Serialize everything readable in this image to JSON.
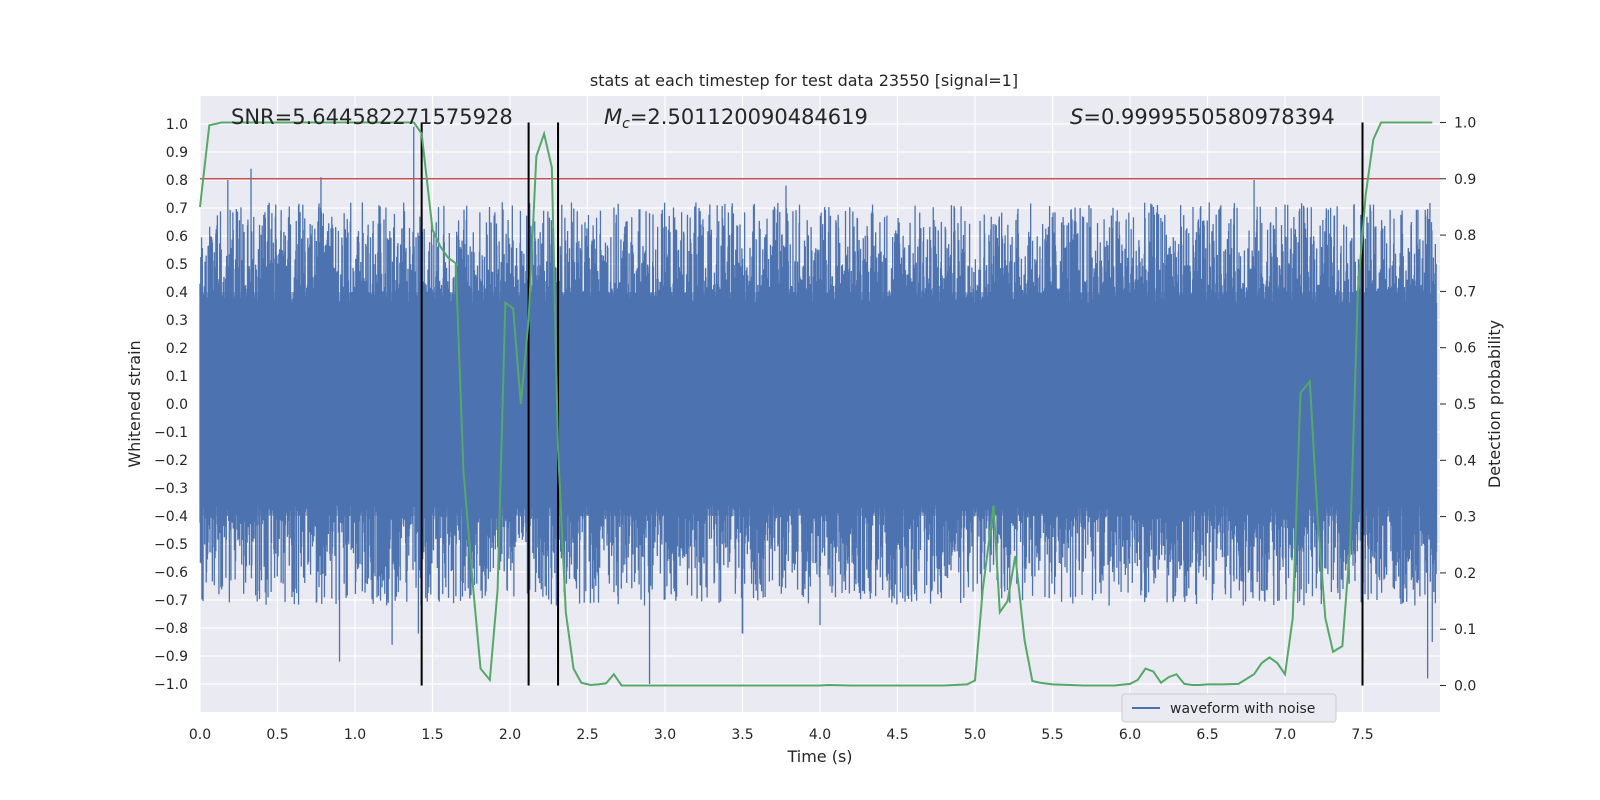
{
  "chart_data": {
    "type": "line",
    "title": "stats at each timestep for test data 23550 [signal=1]",
    "xlabel": "Time (s)",
    "ylabel": "Whitened strain",
    "y2label": "Detection probability",
    "xlim": [
      0.0,
      8.0
    ],
    "ylim": [
      -1.1,
      1.1
    ],
    "y2lim": [
      -0.047,
      1.047
    ],
    "xticks": [
      "0.0",
      "0.5",
      "1.0",
      "1.5",
      "2.0",
      "2.5",
      "3.0",
      "3.5",
      "4.0",
      "4.5",
      "5.0",
      "5.5",
      "6.0",
      "6.5",
      "7.0",
      "7.5"
    ],
    "yticks": [
      "1.0",
      "0.9",
      "0.8",
      "0.7",
      "0.6",
      "0.5",
      "0.4",
      "0.3",
      "0.2",
      "0.1",
      "0.0",
      "−0.1",
      "−0.2",
      "−0.3",
      "−0.4",
      "−0.5",
      "−0.6",
      "−0.7",
      "−0.8",
      "−0.9",
      "−1.0"
    ],
    "y2ticks": [
      "1.0",
      "0.9",
      "0.8",
      "0.7",
      "0.6",
      "0.5",
      "0.4",
      "0.3",
      "0.2",
      "0.1",
      "0.0"
    ],
    "grid": true,
    "annotations": {
      "snr": "SNR=5.644582271575928",
      "mc_sym": "M",
      "mc_sub": "c",
      "mc_val": "=2.501120090484619",
      "s_sym": "S",
      "s_val": "=0.9999550580978394"
    },
    "threshold": {
      "y": 0.9,
      "color": "#c44e52"
    },
    "vlines": [
      1.43,
      2.12,
      2.31,
      7.5
    ],
    "series": [
      {
        "name": "waveform with noise",
        "color": "#4c72b0",
        "envelope_peaks": [
          {
            "x": 0.18,
            "y": 0.8
          },
          {
            "x": 0.33,
            "y": 0.84
          },
          {
            "x": 0.78,
            "y": 0.81
          },
          {
            "x": 1.38,
            "y": 0.99
          },
          {
            "x": 1.95,
            "y": 0.72
          },
          {
            "x": 2.31,
            "y": 0.74
          },
          {
            "x": 3.78,
            "y": 0.78
          },
          {
            "x": 6.8,
            "y": 0.8
          },
          {
            "x": 7.5,
            "y": 0.97
          }
        ],
        "envelope_troughs": [
          {
            "x": 0.9,
            "y": -0.92
          },
          {
            "x": 1.24,
            "y": -0.86
          },
          {
            "x": 1.41,
            "y": -0.82
          },
          {
            "x": 2.9,
            "y": -1.0
          },
          {
            "x": 3.5,
            "y": -0.82
          },
          {
            "x": 4.0,
            "y": -0.79
          },
          {
            "x": 7.92,
            "y": -0.98
          },
          {
            "x": 7.95,
            "y": -0.85
          }
        ]
      },
      {
        "color": "#55a868",
        "axis": "right",
        "x": [
          0.0,
          0.06,
          0.14,
          0.3,
          0.6,
          0.9,
          1.2,
          1.38,
          1.43,
          1.5,
          1.55,
          1.6,
          1.65,
          1.7,
          1.76,
          1.81,
          1.87,
          1.92,
          1.97,
          2.02,
          2.07,
          2.12,
          2.17,
          2.22,
          2.27,
          2.31,
          2.36,
          2.41,
          2.46,
          2.52,
          2.57,
          2.62,
          2.67,
          2.72,
          2.8,
          2.9,
          3.0,
          3.1,
          3.2,
          3.4,
          3.6,
          3.8,
          4.0,
          4.05,
          4.2,
          4.5,
          4.8,
          4.95,
          5.0,
          5.05,
          5.12,
          5.16,
          5.21,
          5.26,
          5.32,
          5.37,
          5.42,
          5.5,
          5.7,
          5.9,
          6.0,
          6.05,
          6.1,
          6.15,
          6.2,
          6.25,
          6.3,
          6.35,
          6.4,
          6.45,
          6.5,
          6.6,
          6.7,
          6.8,
          6.85,
          6.9,
          6.95,
          7.0,
          7.05,
          7.1,
          7.16,
          7.21,
          7.26,
          7.31,
          7.37,
          7.42,
          7.47,
          7.52,
          7.57,
          7.62,
          7.67,
          7.73,
          7.8,
          7.95
        ],
        "values": [
          0.85,
          0.995,
          1.0,
          1.0,
          1.0,
          1.0,
          1.0,
          1.0,
          0.98,
          0.81,
          0.78,
          0.76,
          0.75,
          0.38,
          0.18,
          0.03,
          0.01,
          0.17,
          0.68,
          0.67,
          0.5,
          0.65,
          0.94,
          0.98,
          0.92,
          0.42,
          0.13,
          0.03,
          0.005,
          0.001,
          0.002,
          0.004,
          0.02,
          0.0,
          0.0,
          0.0,
          0.0,
          0.0,
          0.0,
          0.0,
          0.0,
          0.0,
          0.0,
          0.001,
          0.0,
          0.0,
          0.0,
          0.002,
          0.009,
          0.17,
          0.32,
          0.13,
          0.15,
          0.23,
          0.08,
          0.008,
          0.005,
          0.002,
          0.0,
          0.0,
          0.003,
          0.01,
          0.03,
          0.025,
          0.005,
          0.015,
          0.02,
          0.003,
          0.001,
          0.001,
          0.002,
          0.002,
          0.003,
          0.02,
          0.04,
          0.05,
          0.04,
          0.02,
          0.12,
          0.52,
          0.54,
          0.3,
          0.12,
          0.06,
          0.07,
          0.25,
          0.7,
          0.87,
          0.97,
          1.0,
          1.0,
          1.0,
          1.0,
          1.0
        ]
      }
    ],
    "legend": {
      "entries": [
        "waveform with noise"
      ],
      "placement": "bottom-right"
    }
  }
}
